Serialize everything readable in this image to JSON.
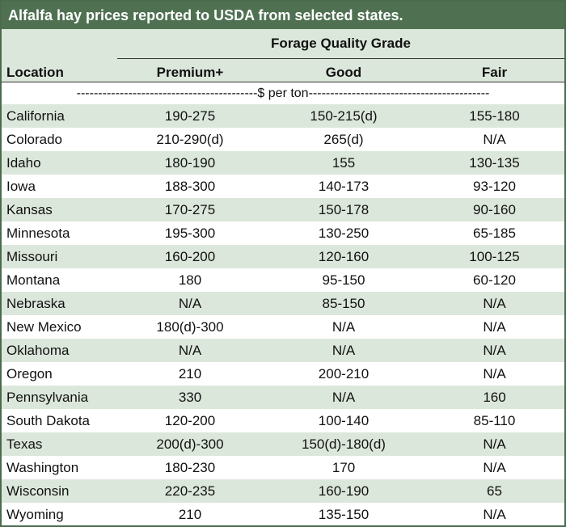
{
  "title": "Alfalfa hay prices reported to USDA from selected states.",
  "header": {
    "group_label": "Forage Quality Grade",
    "location_label": "Location",
    "columns": [
      "Premium+",
      "Good",
      "Fair"
    ]
  },
  "unit_label": "------------------------------------------$ per ton------------------------------------------",
  "rows": [
    {
      "location": "California",
      "premium": "190-275",
      "good": "150-215(d)",
      "fair": "155-180"
    },
    {
      "location": "Colorado",
      "premium": "210-290(d)",
      "good": "265(d)",
      "fair": "N/A"
    },
    {
      "location": "Idaho",
      "premium": "180-190",
      "good": "155",
      "fair": "130-135"
    },
    {
      "location": "Iowa",
      "premium": "188-300",
      "good": "140-173",
      "fair": "93-120"
    },
    {
      "location": "Kansas",
      "premium": "170-275",
      "good": "150-178",
      "fair": "90-160"
    },
    {
      "location": "Minnesota",
      "premium": "195-300",
      "good": "130-250",
      "fair": "65-185"
    },
    {
      "location": "Missouri",
      "premium": "160-200",
      "good": "120-160",
      "fair": "100-125"
    },
    {
      "location": "Montana",
      "premium": "180",
      "good": "95-150",
      "fair": "60-120"
    },
    {
      "location": "Nebraska",
      "premium": "N/A",
      "good": "85-150",
      "fair": "N/A"
    },
    {
      "location": "New Mexico",
      "premium": "180(d)-300",
      "good": "N/A",
      "fair": "N/A"
    },
    {
      "location": "Oklahoma",
      "premium": "N/A",
      "good": "N/A",
      "fair": "N/A"
    },
    {
      "location": "Oregon",
      "premium": "210",
      "good": "200-210",
      "fair": "N/A"
    },
    {
      "location": "Pennsylvania",
      "premium": "330",
      "good": "N/A",
      "fair": "160"
    },
    {
      "location": "South Dakota",
      "premium": "120-200",
      "good": "100-140",
      "fair": "85-110"
    },
    {
      "location": "Texas",
      "premium": "200(d)-300",
      "good": "150(d)-180(d)",
      "fair": "N/A"
    },
    {
      "location": "Washington",
      "premium": "180-230",
      "good": "170",
      "fair": "N/A"
    },
    {
      "location": "Wisconsin",
      "premium": "220-235",
      "good": "160-190",
      "fair": "65"
    },
    {
      "location": "Wyoming",
      "premium": "210",
      "good": "135-150",
      "fair": "N/A"
    }
  ],
  "colors": {
    "title_bg": "#4f7152",
    "band_bg": "#dce7db",
    "border": "#4a6b4e"
  }
}
